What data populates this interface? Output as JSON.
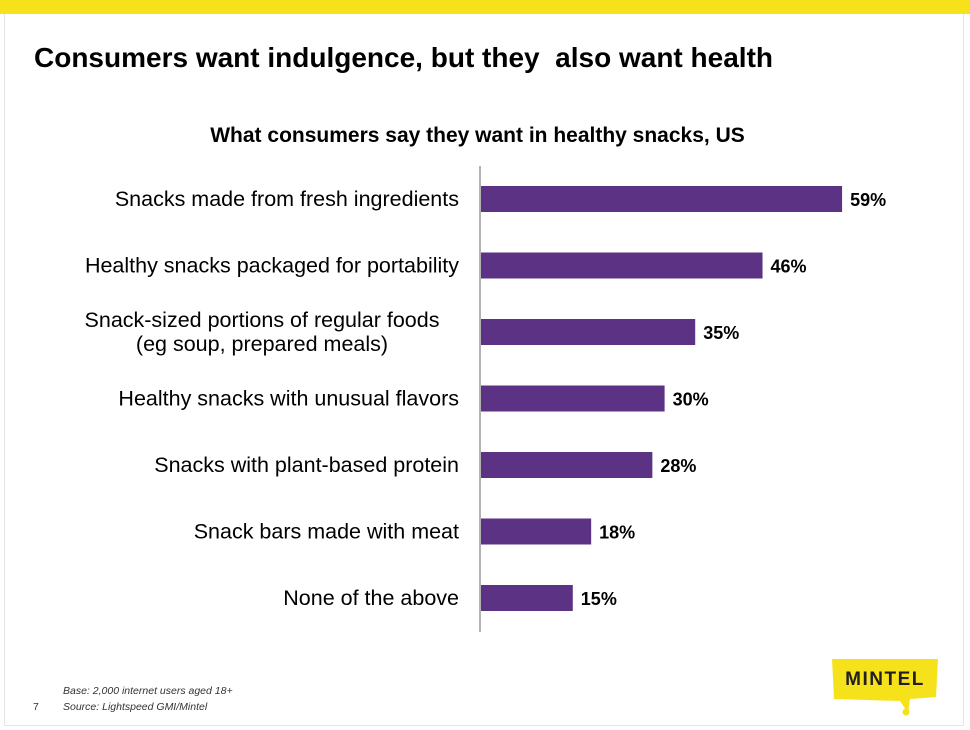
{
  "slide": {
    "title": "Consumers want indulgence, but they  also want health",
    "page_number": "7",
    "base_note": "Base: 2,000 internet users aged 18+",
    "source_note": "Source: Lightspeed GMI/Mintel",
    "logo_text": "MINTEL"
  },
  "colors": {
    "bar": "#5b3284",
    "accent_yellow": "#f5e21b",
    "axis": "#7f7f7f"
  },
  "chart_data": {
    "type": "bar",
    "orientation": "horizontal",
    "title": "What consumers say they want in healthy snacks, US",
    "xlabel": "",
    "ylabel": "",
    "xlim": [
      0,
      100
    ],
    "grid": false,
    "legend": "none",
    "categories": [
      "Snacks made from fresh ingredients",
      "Healthy snacks packaged for portability",
      "Snack-sized portions of regular foods (eg soup, prepared meals)",
      "Healthy snacks with unusual flavors",
      "Snacks with plant-based protein",
      "Snack bars made with meat",
      "None of the above"
    ],
    "category_lines": [
      [
        "Snacks made from fresh ingredients"
      ],
      [
        "Healthy snacks packaged for portability"
      ],
      [
        "Snack-sized portions of regular foods",
        "(eg soup, prepared meals)"
      ],
      [
        "Healthy snacks with unusual flavors"
      ],
      [
        "Snacks with plant-based protein"
      ],
      [
        "Snack bars made with meat"
      ],
      [
        "None of the above"
      ]
    ],
    "values": [
      59,
      46,
      35,
      30,
      28,
      18,
      15
    ],
    "value_labels": [
      "59%",
      "46%",
      "35%",
      "30%",
      "28%",
      "18%",
      "15%"
    ]
  }
}
